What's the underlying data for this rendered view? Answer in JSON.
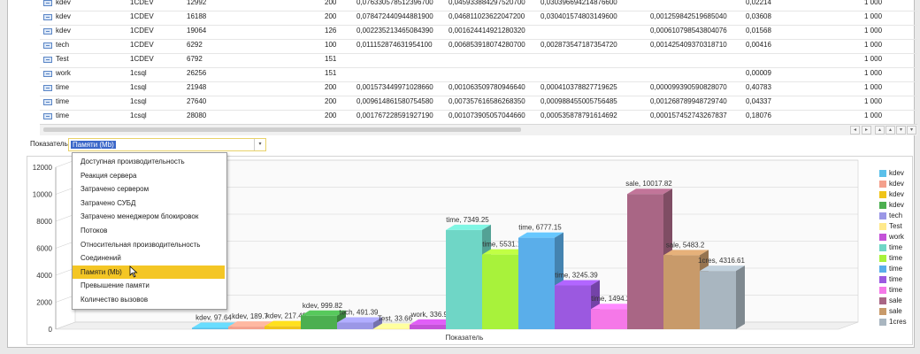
{
  "table": {
    "rows": [
      {
        "name": "kdev",
        "source": "1CDEV",
        "id": "12992",
        "v4": "200",
        "v5": "0,076330578512396700",
        "v6": "0,045933884297520700",
        "v7": "0,030396694214876600",
        "v8": "",
        "v9": "0,02214",
        "v10": "1 000"
      },
      {
        "name": "kdev",
        "source": "1CDEV",
        "id": "16188",
        "v4": "200",
        "v5": "0,078472440944881900",
        "v6": "0,046811023622047200",
        "v7": "0,030401574803149600",
        "v8": "0,001259842519685040",
        "v9": "0,03608",
        "v10": "1 000"
      },
      {
        "name": "kdev",
        "source": "1CDEV",
        "id": "19064",
        "v4": "126",
        "v5": "0,002235213465084390",
        "v6": "0,001624414921280320",
        "v7": "",
        "v8": "0,000610798543804076",
        "v9": "0,01568",
        "v10": "1 000"
      },
      {
        "name": "tech",
        "source": "1CDEV",
        "id": "6292",
        "v4": "100",
        "v5": "0,011152874631954100",
        "v6": "0,006853918074280700",
        "v7": "0,002873547187354720",
        "v8": "0,001425409370318710",
        "v9": "0,00416",
        "v10": "1 000"
      },
      {
        "name": "Test",
        "source": "1CDEV",
        "id": "6792",
        "v4": "151",
        "v5": "",
        "v6": "",
        "v7": "",
        "v8": "",
        "v9": "",
        "v10": "1 000"
      },
      {
        "name": "work",
        "source": "1csql",
        "id": "26256",
        "v4": "151",
        "v5": "",
        "v6": "",
        "v7": "",
        "v8": "",
        "v9": "0,00009",
        "v10": "1 000"
      },
      {
        "name": "time",
        "source": "1csql",
        "id": "21948",
        "v4": "200",
        "v5": "0,001573449971028660",
        "v6": "0,001063509780946640",
        "v7": "0,000410378827719625",
        "v8": "0,000099390590828070",
        "v9": "0,40783",
        "v10": "1 000"
      },
      {
        "name": "time",
        "source": "1csql",
        "id": "27640",
        "v4": "200",
        "v5": "0,009614861580754580",
        "v6": "0,007357616586268350",
        "v7": "0,000988455005756485",
        "v8": "0,001268789948729740",
        "v9": "0,04337",
        "v10": "1 000"
      },
      {
        "name": "time",
        "source": "1csql",
        "id": "28080",
        "v4": "200",
        "v5": "0,001767228591927190",
        "v6": "0,001073905057044660",
        "v7": "0,000535878791614692",
        "v8": "0,000157452743267837",
        "v9": "0,18076",
        "v10": "1 000"
      }
    ]
  },
  "scrollbar": {
    "left": "◂",
    "right": "▸",
    "buttons": [
      "▴",
      "▴",
      "▾",
      "▾"
    ]
  },
  "metric": {
    "label": "Показатель:",
    "selected": "Памяти (Mb)",
    "arrow": "▾"
  },
  "dropdown": {
    "options": [
      "Доступная производительность",
      "Реакция сервера",
      "Затрачено сервером",
      "Затрачено СУБД",
      "Затрачено менеджером блокировок",
      "Потоков",
      "Относительная производительность",
      "Соединений",
      "Памяти (Mb)",
      "Превышение памяти",
      "Количество вызовов"
    ],
    "selected_index": 8
  },
  "chart_data": {
    "type": "bar",
    "xlabel": "Показатель",
    "ylim": [
      0,
      12000
    ],
    "yticks": [
      "0",
      "2000",
      "4000",
      "6000",
      "8000",
      "10000",
      "12000"
    ],
    "grid": true,
    "legend_position": "right",
    "series": [
      {
        "name": "kdev",
        "value": 97.64,
        "label": "kdev, 97.64",
        "color": "#5bc0ea"
      },
      {
        "name": "kdev",
        "value": 189.7,
        "label": "kdev, 189.7",
        "color": "#f4a08c"
      },
      {
        "name": "kdev",
        "value": 217.49,
        "label": "kdev, 217.49",
        "color": "#f0c419"
      },
      {
        "name": "kdev",
        "value": 999.82,
        "label": "kdev, 999.82",
        "color": "#4caf50"
      },
      {
        "name": "tech",
        "value": 491.39,
        "label": "tech, 491.39",
        "color": "#9b97e6"
      },
      {
        "name": "Test",
        "value": 33.66,
        "label": "Test, 33.66",
        "color": "#ffe98a"
      },
      {
        "name": "work",
        "value": 336.91,
        "label": "work, 336.91",
        "color": "#c452d8"
      },
      {
        "name": "time",
        "value": 7349.25,
        "label": "time, 7349.25",
        "color": "#6fd6c6"
      },
      {
        "name": "time",
        "value": 5531.13,
        "label": "time, 5531.13",
        "color": "#a8f23b"
      },
      {
        "name": "time",
        "value": 6777.15,
        "label": "time, 6777.15",
        "color": "#5aaeea"
      },
      {
        "name": "time",
        "value": 3245.39,
        "label": "time, 3245.39",
        "color": "#9b59e0"
      },
      {
        "name": "time",
        "value": 1494.29,
        "label": "time, 1494.29",
        "color": "#f578e8"
      },
      {
        "name": "sale",
        "value": 10017.82,
        "label": "sale, 10017.82",
        "color": "#a96685"
      },
      {
        "name": "sale",
        "value": 5483.2,
        "label": "sale, 5483.2",
        "color": "#c89a6a"
      },
      {
        "name": "1cres",
        "value": 4316.61,
        "label": "1cres, 4316.61",
        "color": "#a9b6c0"
      }
    ]
  }
}
